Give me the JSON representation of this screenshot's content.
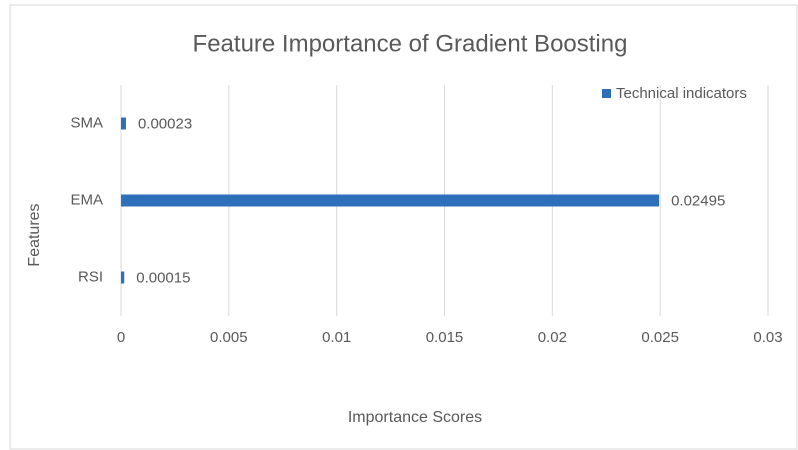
{
  "chart_data": {
    "type": "bar",
    "orientation": "horizontal",
    "title": "Feature Importance of Gradient Boosting",
    "x_label": "Importance Scores",
    "y_label": "Features",
    "categories": [
      "RSI",
      "EMA",
      "SMA"
    ],
    "series": [
      {
        "name": "Technical indicators",
        "color": "#2e6fba",
        "values": [
          0.00015,
          0.02495,
          0.00023
        ]
      }
    ],
    "xlim": [
      0,
      0.03
    ],
    "xticks": [
      0,
      0.005,
      0.01,
      0.015,
      0.02,
      0.025,
      0.03
    ],
    "grid": true,
    "legend": "top-right"
  }
}
